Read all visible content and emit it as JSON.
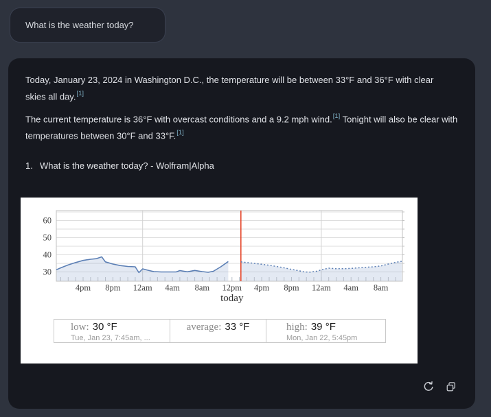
{
  "colors": {
    "page_bg": "#2e333e",
    "card_bg": "#16181f",
    "bubble_bg": "#1f222b",
    "text": "#dfe1e6",
    "citation": "#7fb0c5",
    "chart_line": "#5b7fb5",
    "chart_fill": "rgba(91,127,181,0.17)",
    "now_line": "#e4472c",
    "icon": "#c9ccd2"
  },
  "user_message": {
    "text": "What is the weather today?"
  },
  "answer": {
    "p1_text": "Today, January 23, 2024 in Washington D.C., the temperature will be between 33°F and 36°F with clear skies all day.",
    "p1_cite": "[1]",
    "p2_text1": "The current temperature is 36°F with overcast conditions and a 9.2 mph wind.",
    "p2_cite1": "[1]",
    "p2_text2": " Tonight will also be clear with temperatures between 30°F and 33°F.",
    "p2_cite2": "[1]",
    "source_index": "1.",
    "source_label": "What is the weather today? - Wolfram|Alpha"
  },
  "chart_data": {
    "type": "area",
    "title": "",
    "x_unit": "hours since Mon 12:00pm",
    "xlim": [
      0.4,
      46.9
    ],
    "ylim": [
      24.6,
      65.8
    ],
    "y_ticks": [
      30,
      40,
      50,
      60
    ],
    "y_grid": [
      30,
      35,
      40,
      45,
      50,
      55,
      60,
      65
    ],
    "v_grid": [
      12,
      36
    ],
    "x_ticks": [
      {
        "h": 4,
        "label": "4pm"
      },
      {
        "h": 8,
        "label": "8pm"
      },
      {
        "h": 12,
        "label": "12am"
      },
      {
        "h": 16,
        "label": "4am"
      },
      {
        "h": 20,
        "label": "8am"
      },
      {
        "h": 24,
        "label": "12pm"
      },
      {
        "h": 28,
        "label": "4pm"
      },
      {
        "h": 32,
        "label": "8pm"
      },
      {
        "h": 36,
        "label": "12am"
      },
      {
        "h": 40,
        "label": "4am"
      },
      {
        "h": 44,
        "label": "8am"
      }
    ],
    "x_annotation": {
      "h": 24,
      "label": "today"
    },
    "now_h": 25.2,
    "hour_tick_step": 1,
    "series": [
      {
        "name": "temperature-history-line",
        "style": "solid",
        "points": [
          [
            0.4,
            31.3
          ],
          [
            1,
            32.4
          ],
          [
            2,
            34.1
          ],
          [
            3,
            35.5
          ],
          [
            4,
            36.7
          ],
          [
            5,
            37.4
          ],
          [
            5.75,
            37.7
          ],
          [
            6.5,
            38.8
          ],
          [
            7,
            35.9
          ],
          [
            8,
            34.6
          ],
          [
            9,
            33.7
          ],
          [
            10,
            33.2
          ],
          [
            11,
            33.0
          ],
          [
            11.5,
            29.6
          ],
          [
            12,
            31.8
          ],
          [
            12.7,
            31.0
          ],
          [
            13.5,
            30.2
          ],
          [
            14.5,
            30.0
          ],
          [
            15.5,
            30.0
          ],
          [
            16.5,
            30.0
          ],
          [
            17,
            30.8
          ],
          [
            18,
            30.1
          ],
          [
            19,
            30.9
          ],
          [
            20,
            30.2
          ],
          [
            20.8,
            29.8
          ],
          [
            21.5,
            30.4
          ],
          [
            22.5,
            33.0
          ],
          [
            23.5,
            36.1
          ]
        ]
      },
      {
        "name": "temperature-forecast-line",
        "style": "dotted",
        "points": [
          [
            25.2,
            35.9
          ],
          [
            26,
            35.5
          ],
          [
            27,
            35.0
          ],
          [
            28,
            34.5
          ],
          [
            29,
            33.9
          ],
          [
            30,
            33.2
          ],
          [
            31,
            32.4
          ],
          [
            32,
            31.5
          ],
          [
            33,
            30.7
          ],
          [
            33.7,
            30.0
          ],
          [
            34.5,
            29.9
          ],
          [
            35.5,
            30.5
          ],
          [
            36,
            31.3
          ],
          [
            37,
            32.2
          ],
          [
            38,
            31.9
          ],
          [
            39,
            31.9
          ],
          [
            40,
            32.1
          ],
          [
            41,
            32.4
          ],
          [
            42,
            32.7
          ],
          [
            43,
            33.0
          ],
          [
            44,
            33.5
          ],
          [
            45,
            34.6
          ],
          [
            46,
            35.6
          ],
          [
            46.8,
            36.2
          ]
        ]
      }
    ],
    "stats": [
      {
        "label": "low:",
        "value": "30 °F",
        "detail": "Tue, Jan 23, 7:45am, ..."
      },
      {
        "label": "average:",
        "value": "33 °F",
        "detail": ""
      },
      {
        "label": "high:",
        "value": "39 °F",
        "detail": "Mon, Jan 22, 5:45pm"
      }
    ]
  }
}
